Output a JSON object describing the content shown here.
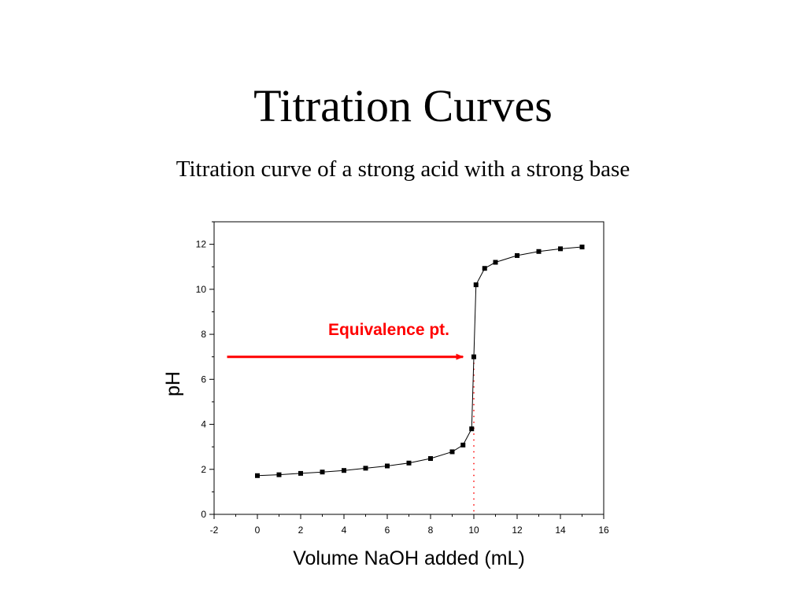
{
  "slide": {
    "title": "Titration Curves",
    "subtitle": "Titration curve of a strong acid with a strong base"
  },
  "chart_data": {
    "type": "line",
    "xlabel": "Volume NaOH added (mL)",
    "ylabel": "pH",
    "xlim": [
      -2,
      16
    ],
    "ylim": [
      0,
      13
    ],
    "x_ticks": [
      -2,
      0,
      2,
      4,
      6,
      8,
      10,
      12,
      14,
      16
    ],
    "y_ticks": [
      0,
      2,
      4,
      6,
      8,
      10,
      12
    ],
    "grid": false,
    "markers": "filled-square",
    "line_color": "#000000",
    "series": [
      {
        "x": [
          0,
          1,
          2,
          3,
          4,
          5,
          6,
          7,
          8,
          9,
          9.5,
          9.9,
          10,
          10.1,
          10.5,
          11,
          12,
          13,
          14,
          15
        ],
        "y": [
          1.72,
          1.76,
          1.82,
          1.88,
          1.95,
          2.05,
          2.15,
          2.28,
          2.48,
          2.78,
          3.08,
          3.8,
          7.0,
          10.2,
          10.93,
          11.2,
          11.5,
          11.68,
          11.8,
          11.88
        ]
      }
    ],
    "annotations": [
      {
        "text": "Equivalence pt.",
        "color": "#ff0000",
        "arrow_from_x": -1.4,
        "arrow_to_x": 9.5,
        "arrow_y": 7.0
      }
    ],
    "reference_line": {
      "x": 10,
      "style": "dotted",
      "color": "#ff0000"
    }
  }
}
